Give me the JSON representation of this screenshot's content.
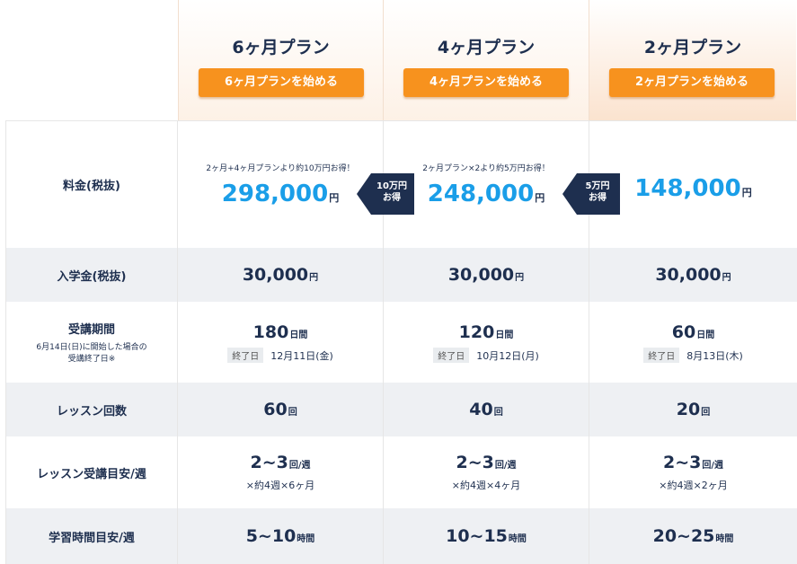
{
  "plans": [
    {
      "title": "6ヶ月プラン",
      "button": "6ヶ月プランを始める"
    },
    {
      "title": "4ヶ月プラン",
      "button": "4ヶ月プランを始める"
    },
    {
      "title": "2ヶ月プラン",
      "button": "2ヶ月プランを始める"
    }
  ],
  "labels": {
    "fee": "料金(税抜)",
    "admission": "入学金(税抜)",
    "period": "受講期間",
    "period_note1": "6月14日(日)に開始した場合の",
    "period_note2": "受講終了日※",
    "lessons": "レッスン回数",
    "lessons_per_week": "レッスン受講目安/週",
    "study_time": "学習時間目安/週"
  },
  "fee": {
    "notes": [
      "2ヶ月+4ヶ月プランより約10万円お得！",
      "2ヶ月プラン×2より約5万円お得！",
      ""
    ],
    "prices": [
      "298,000",
      "248,000",
      "148,000"
    ],
    "unit": "円"
  },
  "arrows": [
    {
      "line1": "10万円",
      "line2": "お得",
      "color": "#1e2f4f"
    },
    {
      "line1": "5万円",
      "line2": "お得",
      "color": "#1e2f4f"
    }
  ],
  "admission": {
    "values": [
      "30,000",
      "30,000",
      "30,000"
    ],
    "unit": "円"
  },
  "period": {
    "days": [
      "180",
      "120",
      "60"
    ],
    "unit": "日間",
    "end_tag": "終了日",
    "end_dates": [
      "12月11日(金)",
      "10月12日(月)",
      "8月13日(木)"
    ]
  },
  "lessons": {
    "values": [
      "60",
      "40",
      "20"
    ],
    "unit": "回"
  },
  "per_week": {
    "values": [
      "2~3",
      "2~3",
      "2~3"
    ],
    "unit": "回/週",
    "formula": [
      "×約4週×6ヶ月",
      "×約4週×4ヶ月",
      "×約4週×2ヶ月"
    ]
  },
  "study": {
    "values": [
      "5~10",
      "10~15",
      "20~25"
    ],
    "unit": "時間"
  },
  "colors": {
    "accent": "#f7921e",
    "price": "#1a9ee8",
    "navy": "#1e2f4f"
  }
}
